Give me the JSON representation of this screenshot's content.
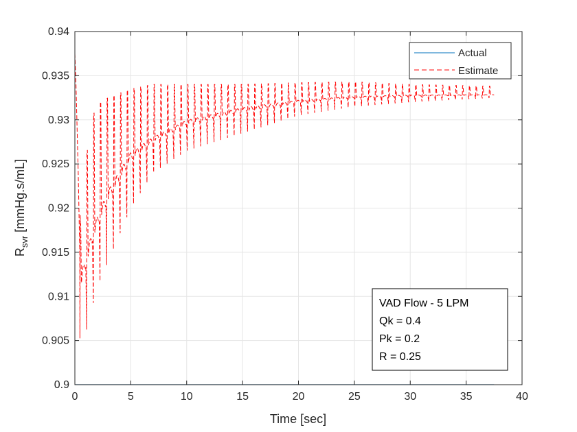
{
  "chart_data": {
    "type": "line",
    "xlabel": "Time [sec]",
    "ylabel": "R",
    "ylabel_subscript": "svr",
    "ylabel_units": " [mmHg.s/mL]",
    "xlim": [
      0,
      40
    ],
    "ylim": [
      0.9,
      0.94
    ],
    "xticks": [
      0,
      5,
      10,
      15,
      20,
      25,
      30,
      35,
      40
    ],
    "yticks": [
      0.9,
      0.905,
      0.91,
      0.915,
      0.92,
      0.925,
      0.93,
      0.935,
      0.94
    ],
    "xtick_labels": [
      "0",
      "5",
      "10",
      "15",
      "20",
      "25",
      "30",
      "35",
      "40"
    ],
    "ytick_labels": [
      "0.9",
      "0.905",
      "0.91",
      "0.915",
      "0.92",
      "0.925",
      "0.93",
      "0.935",
      "0.94"
    ],
    "grid": true,
    "legend_position": "top-right",
    "series": [
      {
        "name": "Actual",
        "color": "#0072BD",
        "style": "solid",
        "x": [
          0,
          37.5
        ],
        "y": [
          0.9,
          0.9
        ]
      },
      {
        "name": "Estimate",
        "color": "#FF0000",
        "style": "dashed",
        "description_of_shape": "oscillating estimate converging from ~0.911 toward ~0.933",
        "cycle_period": 0.6,
        "x_end": 37.5,
        "envelope": {
          "t": [
            0,
            0.1,
            0.3,
            0.5,
            1,
            1.5,
            2,
            3,
            5,
            7,
            10,
            15,
            20,
            25,
            30,
            37.5
          ],
          "baseline": [
            0.9375,
            0.934,
            0.924,
            0.911,
            0.9135,
            0.916,
            0.918,
            0.921,
            0.9255,
            0.9275,
            0.9295,
            0.931,
            0.932,
            0.9325,
            0.9327,
            0.9328
          ],
          "peak": [
            0.9375,
            0.936,
            0.93,
            0.918,
            0.9255,
            0.93,
            0.9318,
            0.9325,
            0.9335,
            0.934,
            0.934,
            0.934,
            0.9342,
            0.9343,
            0.934,
            0.9338
          ],
          "trough": [
            0.9375,
            0.933,
            0.915,
            0.902,
            0.906,
            0.9085,
            0.911,
            0.914,
            0.92,
            0.924,
            0.9265,
            0.9285,
            0.9305,
            0.9315,
            0.932,
            0.9325
          ]
        }
      }
    ],
    "annotation_lines": [
      "VAD Flow - 5 LPM",
      "Qk = 0.4",
      "Pk = 0.2",
      "R = 0.25"
    ]
  }
}
